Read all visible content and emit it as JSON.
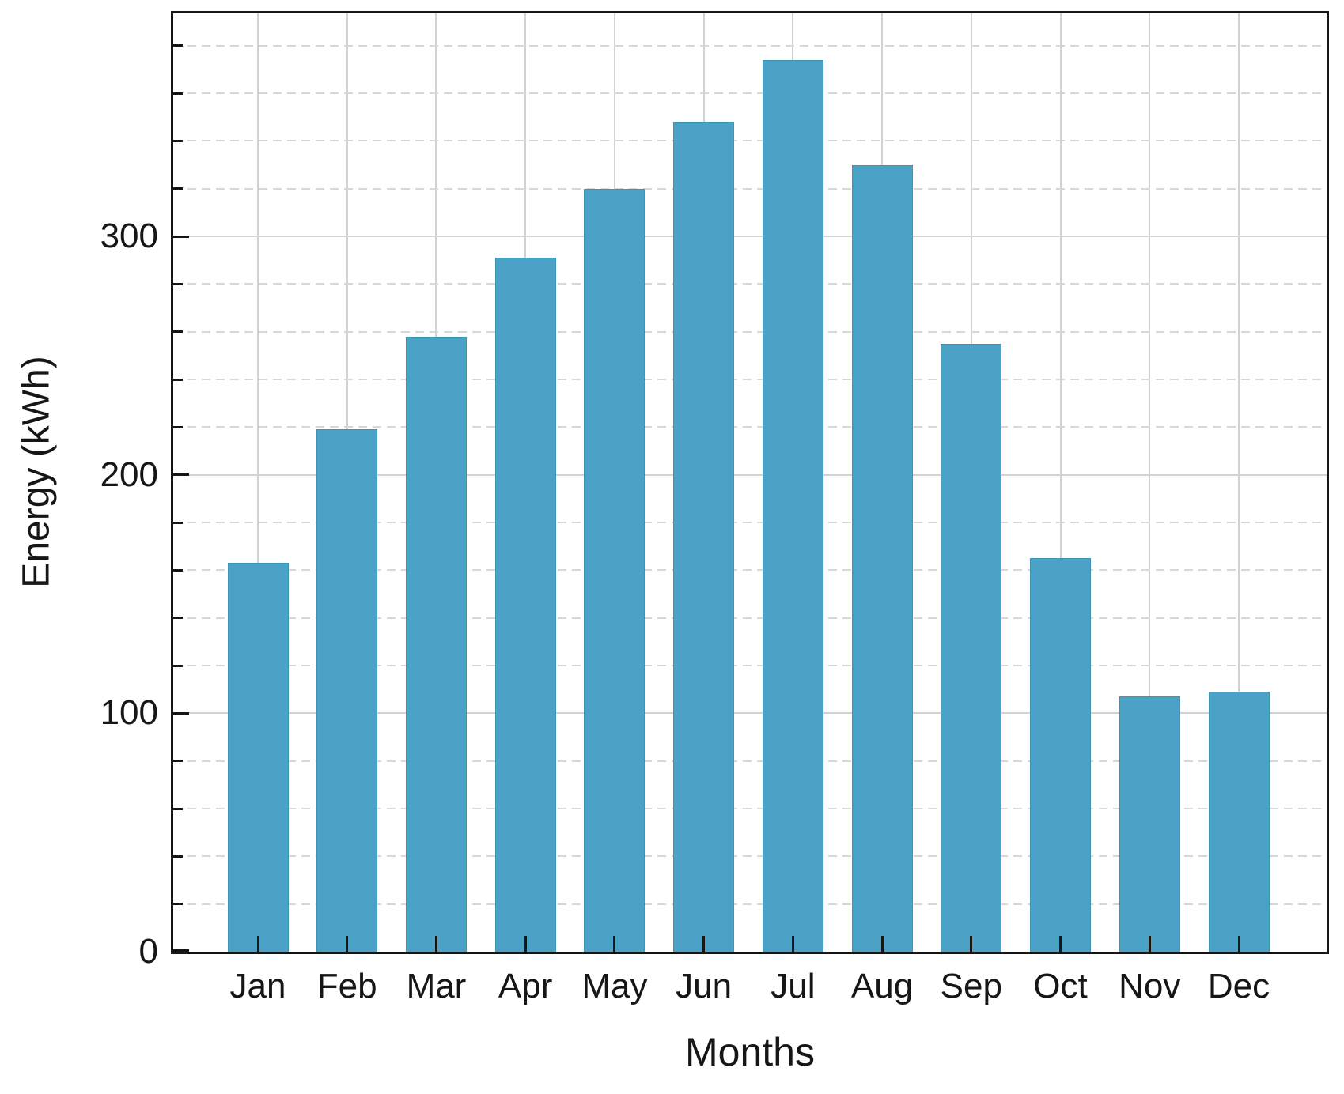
{
  "chart_data": {
    "type": "bar",
    "title": "",
    "xlabel": "Months",
    "ylabel": "Energy (kWh)",
    "categories": [
      "Jan",
      "Feb",
      "Mar",
      "Apr",
      "May",
      "Jun",
      "Jul",
      "Aug",
      "Sep",
      "Oct",
      "Nov",
      "Dec"
    ],
    "values": [
      163,
      219,
      258,
      291,
      320,
      348,
      374,
      330,
      255,
      165,
      107,
      109
    ],
    "ylim": [
      0,
      393.5
    ],
    "yticks_major": [
      0,
      100,
      200,
      300
    ],
    "ytick_labels": [
      "0",
      "100",
      "200",
      "300"
    ],
    "ytick_minor_step": 20,
    "legend_position": "none",
    "grid": {
      "horizontal_major": "solid",
      "horizontal_minor": "dashed",
      "vertical_major": "solid"
    },
    "colors": {
      "bar_fill": "#4aa2c6",
      "bar_edge": "#3e94b6",
      "axis": "#161616",
      "grid_major": "#d2d2d2",
      "grid_minor": "#d7d7d7",
      "background": "#ffffff"
    }
  }
}
